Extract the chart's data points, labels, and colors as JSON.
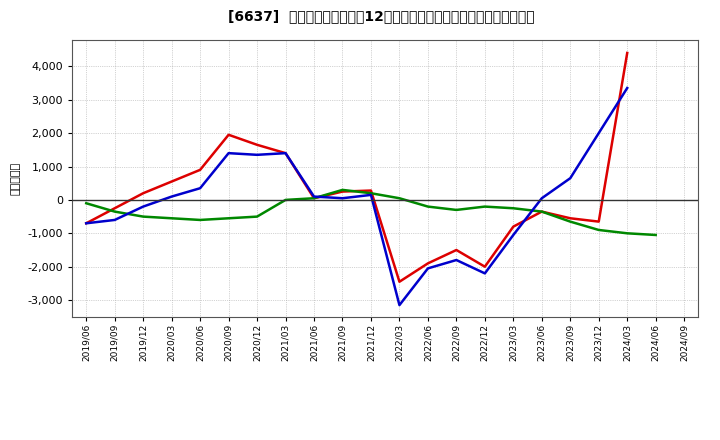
{
  "title": "[6637]  キャッシュフローの12か月移動合計の対前年同期増減額の推移",
  "ylabel": "（百万円）",
  "background_color": "#ffffff",
  "plot_bg_color": "#ffffff",
  "grid_color": "#aaaaaa",
  "x_labels": [
    "2019/06",
    "2019/09",
    "2019/12",
    "2020/03",
    "2020/06",
    "2020/09",
    "2020/12",
    "2021/03",
    "2021/06",
    "2021/09",
    "2021/12",
    "2022/03",
    "2022/06",
    "2022/09",
    "2022/12",
    "2023/03",
    "2023/06",
    "2023/09",
    "2023/12",
    "2024/03",
    "2024/06",
    "2024/09"
  ],
  "operating_cf": [
    -700,
    -250,
    200,
    550,
    900,
    1950,
    1650,
    1400,
    50,
    250,
    280,
    -2450,
    -1900,
    -1500,
    -2000,
    -800,
    -350,
    -550,
    -650,
    4400,
    null,
    null
  ],
  "investing_cf": [
    -100,
    -350,
    -500,
    -550,
    -600,
    -550,
    -500,
    0,
    50,
    300,
    200,
    50,
    -200,
    -300,
    -200,
    -250,
    -350,
    -650,
    -900,
    -1000,
    -1050,
    null
  ],
  "free_cf": [
    -700,
    -600,
    -200,
    100,
    350,
    1400,
    1350,
    1400,
    100,
    50,
    150,
    -3150,
    -2050,
    -1800,
    -2200,
    -1050,
    50,
    650,
    2000,
    3350,
    null,
    null
  ],
  "operating_color": "#dd0000",
  "investing_color": "#008800",
  "free_color": "#0000cc",
  "ylim": [
    -3500,
    4800
  ],
  "yticks": [
    -3000,
    -2000,
    -1000,
    0,
    1000,
    2000,
    3000,
    4000
  ]
}
